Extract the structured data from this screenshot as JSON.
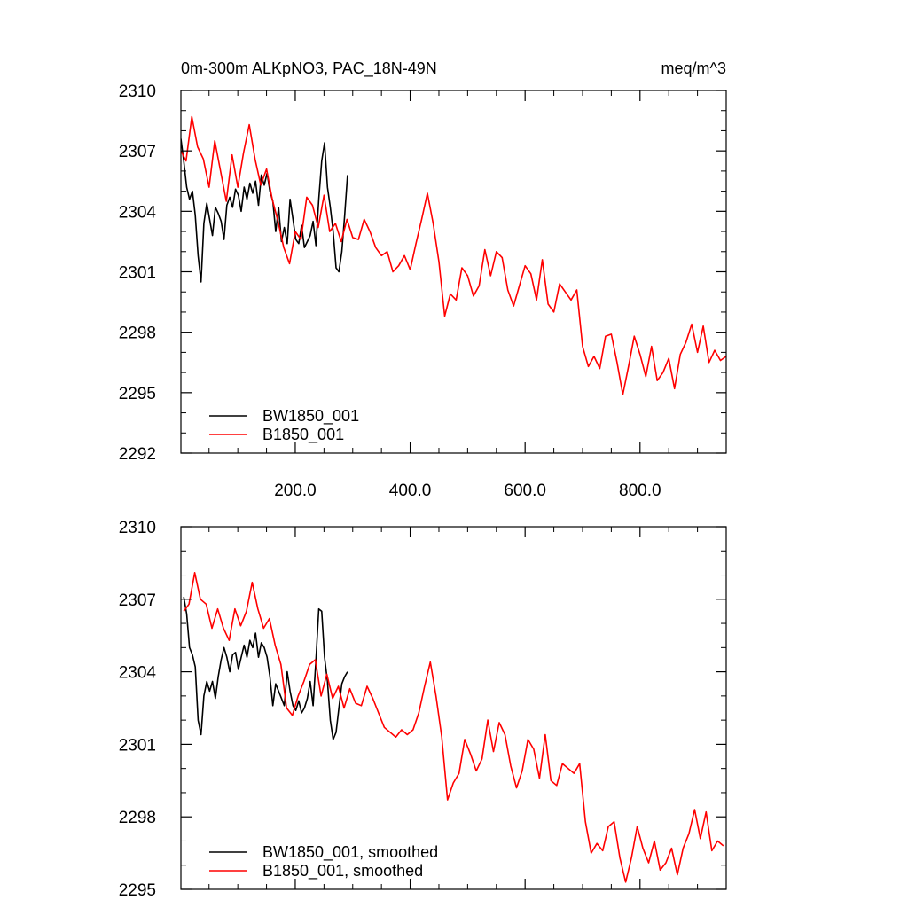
{
  "header": {
    "left_title": "0m-300m ALKpNO3, PAC_18N-49N",
    "right_title": "meq/m^3"
  },
  "colors": {
    "bw": "#000000",
    "b": "#ff0000"
  },
  "chart_data": [
    {
      "type": "line",
      "title": "",
      "xlabel": "",
      "ylabel": "",
      "xlim": [
        1,
        950
      ],
      "ylim": [
        2292,
        2310
      ],
      "xticks": [
        200,
        400,
        600,
        800
      ],
      "xtick_labels": [
        "200.0",
        "400.0",
        "600.0",
        "800.0"
      ],
      "yticks": [
        2292,
        2295,
        2298,
        2301,
        2304,
        2307,
        2310
      ],
      "ytick_labels": [
        "2292",
        "2295",
        "2298",
        "2301",
        "2304",
        "2307",
        "2310"
      ],
      "legend": {
        "placement": "bottom-left"
      },
      "grid": false,
      "series": [
        {
          "name": "BW1850_001",
          "color": "#000000",
          "x": [
            1,
            6,
            11,
            16,
            21,
            26,
            31,
            36,
            41,
            46,
            51,
            56,
            61,
            66,
            71,
            76,
            81,
            86,
            91,
            96,
            101,
            106,
            111,
            116,
            121,
            126,
            131,
            136,
            141,
            146,
            151,
            156,
            161,
            166,
            171,
            176,
            181,
            186,
            191,
            196,
            201,
            206,
            211,
            216,
            221,
            226,
            231,
            236,
            241,
            246,
            251,
            256,
            261,
            266,
            271,
            276,
            281,
            286,
            291
          ],
          "y": [
            2307.6,
            2306.5,
            2305.2,
            2304.6,
            2305.0,
            2303.8,
            2301.8,
            2300.5,
            2303.4,
            2304.4,
            2303.6,
            2302.8,
            2304.2,
            2303.9,
            2303.5,
            2302.6,
            2304.3,
            2304.7,
            2304.2,
            2305.1,
            2304.8,
            2304.0,
            2305.2,
            2304.6,
            2305.4,
            2304.9,
            2305.5,
            2304.3,
            2305.8,
            2305.3,
            2305.9,
            2305.0,
            2304.5,
            2303.0,
            2304.2,
            2302.5,
            2303.2,
            2302.4,
            2304.6,
            2303.6,
            2302.6,
            2302.4,
            2303.3,
            2302.2,
            2302.5,
            2302.8,
            2303.5,
            2302.3,
            2304.6,
            2306.5,
            2307.4,
            2305.2,
            2304.2,
            2303.0,
            2301.2,
            2301.0,
            2302.0,
            2303.8,
            2305.8
          ]
        },
        {
          "name": "B1850_001",
          "color": "#ff0000",
          "x": [
            1,
            10,
            20,
            30,
            40,
            50,
            60,
            70,
            80,
            90,
            100,
            110,
            120,
            130,
            140,
            150,
            160,
            170,
            180,
            190,
            200,
            210,
            220,
            230,
            240,
            250,
            260,
            270,
            280,
            290,
            300,
            310,
            320,
            330,
            340,
            350,
            360,
            370,
            380,
            390,
            400,
            410,
            420,
            430,
            440,
            450,
            460,
            470,
            480,
            490,
            500,
            510,
            520,
            530,
            540,
            550,
            560,
            570,
            580,
            590,
            600,
            610,
            620,
            630,
            640,
            650,
            660,
            670,
            680,
            690,
            700,
            710,
            720,
            730,
            740,
            750,
            760,
            770,
            780,
            790,
            800,
            810,
            820,
            830,
            840,
            850,
            860,
            870,
            880,
            890,
            900,
            910,
            920,
            930,
            940,
            950
          ],
          "y": [
            2307.0,
            2306.5,
            2308.7,
            2307.2,
            2306.6,
            2305.2,
            2307.5,
            2306.0,
            2304.5,
            2306.8,
            2305.2,
            2306.9,
            2308.3,
            2306.6,
            2305.3,
            2306.1,
            2304.6,
            2303.5,
            2302.2,
            2301.4,
            2303.0,
            2302.6,
            2304.7,
            2304.3,
            2303.2,
            2304.8,
            2303.0,
            2303.4,
            2302.5,
            2303.6,
            2302.7,
            2302.6,
            2303.6,
            2303.0,
            2302.2,
            2301.8,
            2302.0,
            2301.0,
            2301.3,
            2301.8,
            2301.1,
            2302.4,
            2303.6,
            2304.9,
            2303.4,
            2301.5,
            2298.8,
            2299.9,
            2299.6,
            2301.2,
            2300.8,
            2299.8,
            2300.3,
            2302.1,
            2300.8,
            2302.0,
            2301.7,
            2300.1,
            2299.3,
            2300.3,
            2301.3,
            2300.9,
            2299.6,
            2301.6,
            2299.4,
            2299.0,
            2300.4,
            2300.0,
            2299.6,
            2300.1,
            2297.3,
            2296.3,
            2296.8,
            2296.2,
            2297.8,
            2297.9,
            2296.5,
            2294.9,
            2296.3,
            2297.8,
            2296.9,
            2295.8,
            2297.3,
            2295.6,
            2296.0,
            2296.7,
            2295.2,
            2296.9,
            2297.5,
            2298.4,
            2297.0,
            2298.3,
            2296.5,
            2297.1,
            2296.6,
            2296.8
          ]
        }
      ]
    },
    {
      "type": "line",
      "title": "",
      "xlabel": "",
      "ylabel": "",
      "xlim": [
        1,
        950
      ],
      "ylim": [
        2295,
        2310
      ],
      "xticks": [
        200,
        400,
        600,
        800
      ],
      "xtick_labels": [],
      "yticks": [
        2295,
        2298,
        2301,
        2304,
        2307,
        2310
      ],
      "ytick_labels": [
        "2295",
        "2298",
        "2301",
        "2304",
        "2307",
        "2310"
      ],
      "legend": {
        "placement": "bottom-left"
      },
      "grid": false,
      "series": [
        {
          "name": "BW1850_001, smoothed",
          "color": "#000000",
          "x": [
            6,
            11,
            16,
            21,
            26,
            31,
            36,
            41,
            46,
            51,
            56,
            61,
            66,
            71,
            76,
            81,
            86,
            91,
            96,
            101,
            106,
            111,
            116,
            121,
            126,
            131,
            136,
            141,
            146,
            151,
            156,
            161,
            166,
            171,
            176,
            181,
            186,
            191,
            196,
            201,
            206,
            211,
            216,
            221,
            226,
            231,
            236,
            241,
            246,
            251,
            256,
            261,
            266,
            271,
            276,
            281,
            286,
            291
          ],
          "y": [
            2307.1,
            2306.4,
            2305.0,
            2304.7,
            2304.2,
            2302.0,
            2301.4,
            2303.0,
            2303.6,
            2303.2,
            2303.6,
            2302.9,
            2303.8,
            2304.5,
            2305.0,
            2304.6,
            2304.0,
            2304.7,
            2304.8,
            2304.1,
            2304.6,
            2305.1,
            2304.6,
            2305.3,
            2305.0,
            2305.6,
            2304.6,
            2305.2,
            2305.0,
            2304.6,
            2303.8,
            2302.6,
            2303.5,
            2303.2,
            2302.9,
            2302.6,
            2304.0,
            2303.2,
            2302.6,
            2302.4,
            2302.8,
            2302.3,
            2302.5,
            2302.9,
            2303.6,
            2302.6,
            2304.5,
            2306.6,
            2306.5,
            2304.6,
            2303.6,
            2302.0,
            2301.2,
            2301.5,
            2302.5,
            2303.5,
            2303.8,
            2304.0
          ]
        },
        {
          "name": "B1850_001, smoothed",
          "color": "#ff0000",
          "x": [
            6,
            15,
            25,
            35,
            45,
            55,
            65,
            75,
            85,
            95,
            105,
            115,
            125,
            135,
            145,
            155,
            165,
            175,
            185,
            195,
            205,
            215,
            225,
            235,
            245,
            255,
            265,
            275,
            285,
            295,
            305,
            315,
            325,
            335,
            345,
            355,
            365,
            375,
            385,
            395,
            405,
            415,
            425,
            435,
            445,
            455,
            465,
            475,
            485,
            495,
            505,
            515,
            525,
            535,
            545,
            555,
            565,
            575,
            585,
            595,
            605,
            615,
            625,
            635,
            645,
            655,
            665,
            675,
            685,
            695,
            705,
            715,
            725,
            735,
            745,
            755,
            765,
            775,
            785,
            795,
            805,
            815,
            825,
            835,
            845,
            855,
            865,
            875,
            885,
            895,
            905,
            915,
            925,
            935,
            945
          ],
          "y": [
            2306.5,
            2306.8,
            2308.1,
            2307.0,
            2306.8,
            2305.8,
            2306.6,
            2305.8,
            2305.3,
            2306.6,
            2305.9,
            2306.5,
            2307.7,
            2306.6,
            2305.8,
            2306.2,
            2305.1,
            2304.3,
            2302.5,
            2302.2,
            2303.0,
            2303.6,
            2304.3,
            2304.5,
            2303.0,
            2303.9,
            2302.9,
            2303.4,
            2302.5,
            2303.3,
            2302.7,
            2302.6,
            2303.4,
            2302.9,
            2302.3,
            2301.7,
            2301.5,
            2301.3,
            2301.6,
            2301.4,
            2301.6,
            2302.3,
            2303.4,
            2304.4,
            2303.0,
            2301.3,
            2298.7,
            2299.4,
            2299.8,
            2301.2,
            2300.6,
            2299.9,
            2300.4,
            2302.0,
            2300.7,
            2301.9,
            2301.4,
            2300.1,
            2299.2,
            2299.9,
            2301.2,
            2300.8,
            2299.6,
            2301.4,
            2299.5,
            2299.3,
            2300.2,
            2300.0,
            2299.8,
            2300.2,
            2297.8,
            2296.5,
            2296.9,
            2296.6,
            2297.6,
            2297.8,
            2296.3,
            2295.3,
            2296.3,
            2297.6,
            2296.7,
            2296.1,
            2297.0,
            2295.8,
            2296.1,
            2296.7,
            2295.6,
            2296.7,
            2297.3,
            2298.3,
            2297.1,
            2298.2,
            2296.6,
            2297.0,
            2296.8
          ]
        }
      ]
    }
  ]
}
